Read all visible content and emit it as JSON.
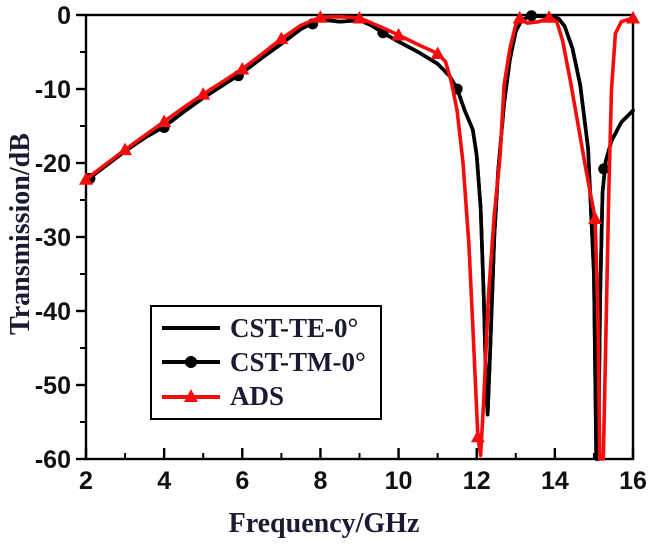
{
  "figure": {
    "xlabel": "Frequency/GHz",
    "ylabel": "Transmission/dB"
  },
  "colors": {
    "black_series": "#000000",
    "red_series": "#f50d0d",
    "text": "#1a1a33",
    "axis": "#000000",
    "background": "#ffffff"
  },
  "legend": {
    "position": "inside-center-left",
    "items": [
      {
        "label": "CST-TE-0°",
        "marker": "none",
        "series_index": 0
      },
      {
        "label": "CST-TM-0°",
        "marker": "circle",
        "series_index": 1
      },
      {
        "label": "ADS",
        "marker": "triangle",
        "series_index": 2
      }
    ]
  },
  "chart_data": {
    "type": "line",
    "title": "",
    "xlabel": "Frequency/GHz",
    "ylabel": "Transmission/dB",
    "xlim": [
      2,
      16
    ],
    "ylim": [
      -60,
      0
    ],
    "grid": false,
    "frame": true,
    "xticks_major": [
      2,
      4,
      6,
      8,
      10,
      12,
      14,
      16
    ],
    "xtick_labels": [
      "2",
      "4",
      "6",
      "8",
      "10",
      "12",
      "14",
      "16"
    ],
    "xticks_minor": [
      3,
      5,
      7,
      9,
      11,
      13,
      15
    ],
    "yticks_major": [
      0,
      -10,
      -20,
      -30,
      -40,
      -50,
      -60
    ],
    "ytick_labels": [
      "0",
      "-10",
      "-20",
      "-30",
      "-40",
      "-50",
      "-60"
    ],
    "yticks_minor": [
      -5,
      -15,
      -25,
      -35,
      -45,
      -55
    ],
    "series": [
      {
        "name": "CST-TE-0°",
        "color": "#000000",
        "marker": "none",
        "points": [
          [
            2,
            -22.4
          ],
          [
            2.5,
            -20.4
          ],
          [
            3,
            -18.4
          ],
          [
            3.5,
            -16.6
          ],
          [
            4,
            -15.1
          ],
          [
            4.5,
            -13.1
          ],
          [
            5,
            -11.2
          ],
          [
            5.5,
            -9.5
          ],
          [
            6,
            -7.8
          ],
          [
            6.5,
            -5.8
          ],
          [
            7,
            -3.9
          ],
          [
            7.5,
            -1.9
          ],
          [
            8,
            -0.6
          ],
          [
            8.5,
            -0.9
          ],
          [
            9,
            -0.7
          ],
          [
            9.3,
            -1.4
          ],
          [
            9.6,
            -2.4
          ],
          [
            10,
            -3.6
          ],
          [
            10.5,
            -5.0
          ],
          [
            11,
            -6.6
          ],
          [
            11.3,
            -8.2
          ],
          [
            11.5,
            -10
          ],
          [
            11.7,
            -13
          ],
          [
            11.9,
            -15.5
          ],
          [
            12.0,
            -19
          ],
          [
            12.1,
            -26
          ],
          [
            12.18,
            -38
          ],
          [
            12.24,
            -50
          ],
          [
            12.28,
            -54
          ],
          [
            12.34,
            -46
          ],
          [
            12.45,
            -30
          ],
          [
            12.55,
            -21
          ],
          [
            12.7,
            -12
          ],
          [
            12.85,
            -6
          ],
          [
            13.0,
            -2.2
          ],
          [
            13.15,
            -0.7
          ],
          [
            13.35,
            -0.2
          ],
          [
            13.6,
            -0.15
          ],
          [
            13.9,
            -0.15
          ],
          [
            14.1,
            -0.5
          ],
          [
            14.25,
            -1.5
          ],
          [
            14.45,
            -4.5
          ],
          [
            14.65,
            -9.5
          ],
          [
            14.85,
            -18
          ],
          [
            15.0,
            -35
          ],
          [
            15.06,
            -60
          ],
          [
            15.11,
            -60
          ],
          [
            15.16,
            -38
          ],
          [
            15.22,
            -24
          ],
          [
            15.3,
            -19.8
          ],
          [
            15.45,
            -17
          ],
          [
            15.7,
            -14.5
          ],
          [
            16,
            -12.9
          ]
        ]
      },
      {
        "name": "CST-TM-0°",
        "color": "#000000",
        "marker": "circle",
        "points_ref": 0,
        "marker_points": [
          [
            2.1,
            -22.1
          ],
          [
            4,
            -15.2
          ],
          [
            5.9,
            -8.2
          ],
          [
            7.8,
            -1.2
          ],
          [
            9.6,
            -2.4
          ],
          [
            11.5,
            -10
          ],
          [
            13.4,
            -0.1
          ],
          [
            15.25,
            -20.8
          ]
        ]
      },
      {
        "name": "ADS",
        "color": "#f50d0d",
        "marker": "triangle",
        "points": [
          [
            2,
            -22.2
          ],
          [
            2.5,
            -20.2
          ],
          [
            3,
            -18.2
          ],
          [
            3.5,
            -16.3
          ],
          [
            4,
            -14.4
          ],
          [
            4.5,
            -12.5
          ],
          [
            5,
            -10.7
          ],
          [
            5.5,
            -9.0
          ],
          [
            6,
            -7.3
          ],
          [
            6.5,
            -5.3
          ],
          [
            7,
            -3.2
          ],
          [
            7.5,
            -1.4
          ],
          [
            8,
            -0.3
          ],
          [
            8.5,
            -0.25
          ],
          [
            9,
            -0.4
          ],
          [
            9.5,
            -1.5
          ],
          [
            10,
            -2.7
          ],
          [
            10.5,
            -4.0
          ],
          [
            11,
            -5.2
          ],
          [
            11.2,
            -6.3
          ],
          [
            11.35,
            -9
          ],
          [
            11.5,
            -13
          ],
          [
            11.65,
            -20
          ],
          [
            11.8,
            -31
          ],
          [
            11.9,
            -42
          ],
          [
            12.03,
            -57
          ],
          [
            12.1,
            -59.5
          ],
          [
            12.18,
            -52
          ],
          [
            12.3,
            -38
          ],
          [
            12.45,
            -27
          ],
          [
            12.6,
            -19
          ],
          [
            12.7,
            -9.5
          ],
          [
            12.85,
            -4.5
          ],
          [
            13.0,
            -1.3
          ],
          [
            13.1,
            -0.4
          ],
          [
            13.3,
            -1.1
          ],
          [
            13.6,
            -0.9
          ],
          [
            13.85,
            -0.3
          ],
          [
            14.05,
            -0.9
          ],
          [
            14.2,
            -3.5
          ],
          [
            14.4,
            -9
          ],
          [
            14.6,
            -15
          ],
          [
            14.8,
            -21
          ],
          [
            15.03,
            -27.5
          ],
          [
            15.1,
            -40
          ],
          [
            15.15,
            -60
          ],
          [
            15.24,
            -60
          ],
          [
            15.3,
            -45
          ],
          [
            15.38,
            -24
          ],
          [
            15.45,
            -10
          ],
          [
            15.55,
            -2.5
          ],
          [
            15.7,
            -0.9
          ],
          [
            16,
            -0.4
          ]
        ],
        "marker_points": [
          [
            2,
            -22.2
          ],
          [
            3,
            -18.2
          ],
          [
            4,
            -14.4
          ],
          [
            5,
            -10.7
          ],
          [
            6,
            -7.3
          ],
          [
            7,
            -3.2
          ],
          [
            8,
            -0.3
          ],
          [
            9,
            -0.4
          ],
          [
            10,
            -2.7
          ],
          [
            11,
            -5.2
          ],
          [
            12.03,
            -57
          ],
          [
            13.1,
            -0.4
          ],
          [
            13.85,
            -0.3
          ],
          [
            15.03,
            -27.5
          ],
          [
            16,
            -0.4
          ]
        ]
      }
    ]
  }
}
